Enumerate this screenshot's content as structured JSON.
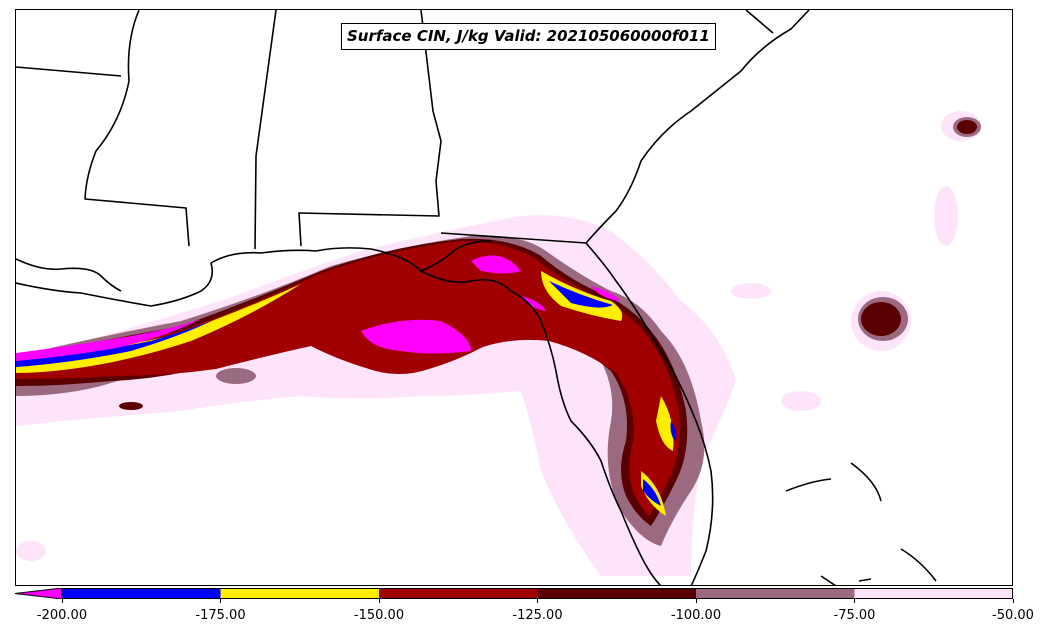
{
  "title": "Surface CIN, J/kg Valid: 202105060000f011",
  "colorbar": {
    "under_color": "#ff00ff",
    "bins": [
      {
        "from": -200,
        "to": -175,
        "color": "#0000ff"
      },
      {
        "from": -175,
        "to": -150,
        "color": "#ffee00"
      },
      {
        "from": -150,
        "to": -125,
        "color": "#a00000"
      },
      {
        "from": -125,
        "to": -100,
        "color": "#5a0000"
      },
      {
        "from": -100,
        "to": -75,
        "color": "#9c6a80"
      },
      {
        "from": -75,
        "to": -50,
        "color": "#fde4fb"
      }
    ],
    "ticks": [
      "-200.00",
      "-175.00",
      "-150.00",
      "-125.00",
      "-100.00",
      "-75.00",
      "-50.00"
    ]
  },
  "map": {
    "region": "Southeastern United States and Gulf of Mexico",
    "field": "Surface CIN",
    "units": "J/kg"
  }
}
